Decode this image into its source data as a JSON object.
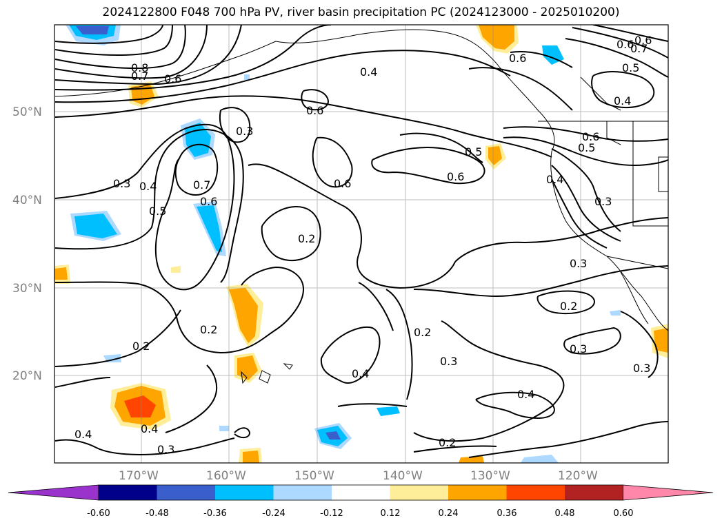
{
  "title": "2024122800 F048 700 hPa PV, river basin precipitation PC (2024123000 - 2025010200)",
  "axes": {
    "lat_labels": [
      "50°N",
      "40°N",
      "30°N",
      "20°N"
    ],
    "lon_labels": [
      "170°W",
      "160°W",
      "150°W",
      "140°W",
      "130°W",
      "120°W"
    ]
  },
  "contour_labels": [
    "0.8",
    "0.7",
    "0.6",
    "0.4",
    "0.6",
    "0.6",
    "0.7",
    "0.5",
    "0.4",
    "0.3",
    "0.6",
    "0.6",
    "0.5",
    "0.6",
    "0.5",
    "0.6",
    "0.4",
    "0.3",
    "0.6",
    "0.3",
    "0.4",
    "0.7",
    "0.6",
    "0.5",
    "0.2",
    "0.3",
    "0.2",
    "0.2",
    "0.4",
    "0.2",
    "0.3",
    "0.2",
    "0.3",
    "0.4",
    "0.3",
    "0.4",
    "0.3",
    "0.2",
    "0.4"
  ],
  "colorbar": {
    "ticks": [
      "-0.60",
      "-0.48",
      "-0.36",
      "-0.24",
      "-0.12",
      "0.12",
      "0.24",
      "0.36",
      "0.48",
      "0.60"
    ],
    "colors": [
      "#9933cc",
      "#00008b",
      "#3a5fcd",
      "#00bfff",
      "#add8ff",
      "#ffffff",
      "#ffee99",
      "#ffa500",
      "#ff4500",
      "#b22222",
      "#ff88aa"
    ]
  }
}
